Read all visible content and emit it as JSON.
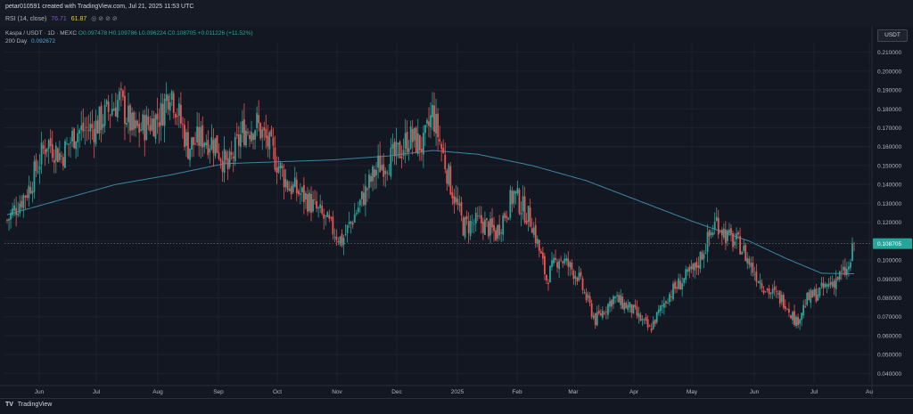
{
  "caption": "petar010591 created with TradingView.com, Jul 21, 2025 11:53 UTC",
  "rsi": {
    "label": "RSI (14, close)",
    "value1": "76.71",
    "value2": "61.87",
    "icons": "◎ ⊘ ⊘ ⊘"
  },
  "legend": {
    "symbol": "Kaspa / USDT · 1D · MEXC",
    "open": "O0.097478",
    "high": "H0.109786",
    "low": "L0.096224",
    "close": "C0.108705",
    "change": "+0.011226 (+11.52%)",
    "ma_name": "200 Day",
    "ma_value": "0.092672"
  },
  "currency": "USDT",
  "brand": {
    "logo": "TV",
    "name": "TradingView"
  },
  "colors": {
    "up": "#26a69a",
    "down": "#ef5350",
    "ma": "#3d86a5",
    "last_price_bg": "#26a69a"
  },
  "chart_data": {
    "type": "candlestick",
    "ylim": [
      0.035,
      0.215
    ],
    "y_ticks": [
      "0.210000",
      "0.200000",
      "0.190000",
      "0.180000",
      "0.170000",
      "0.160000",
      "0.150000",
      "0.140000",
      "0.130000",
      "0.120000",
      "0.110000",
      "0.100000",
      "0.090000",
      "0.080000",
      "0.070000",
      "0.060000",
      "0.050000",
      "0.040000"
    ],
    "x_ticks": [
      "Jun",
      "Jul",
      "Aug",
      "Sep",
      "Oct",
      "Nov",
      "Dec",
      "2025",
      "Feb",
      "Mar",
      "Apr",
      "May",
      "Jun",
      "Jul",
      "Au"
    ],
    "last_price": "0.108705",
    "last_price_value": 0.108705,
    "price_anchors": [
      [
        0,
        0.121
      ],
      [
        12,
        0.138
      ],
      [
        22,
        0.163
      ],
      [
        30,
        0.155
      ],
      [
        38,
        0.168
      ],
      [
        48,
        0.17
      ],
      [
        62,
        0.185
      ],
      [
        70,
        0.168
      ],
      [
        78,
        0.172
      ],
      [
        85,
        0.177
      ],
      [
        90,
        0.192
      ],
      [
        100,
        0.16
      ],
      [
        108,
        0.165
      ],
      [
        115,
        0.162
      ],
      [
        122,
        0.148
      ],
      [
        130,
        0.168
      ],
      [
        138,
        0.172
      ],
      [
        145,
        0.16
      ],
      [
        155,
        0.14
      ],
      [
        165,
        0.133
      ],
      [
        175,
        0.122
      ],
      [
        185,
        0.11
      ],
      [
        195,
        0.13
      ],
      [
        205,
        0.15
      ],
      [
        215,
        0.155
      ],
      [
        222,
        0.165
      ],
      [
        230,
        0.16
      ],
      [
        235,
        0.178
      ],
      [
        245,
        0.14
      ],
      [
        252,
        0.118
      ],
      [
        262,
        0.12
      ],
      [
        270,
        0.114
      ],
      [
        280,
        0.135
      ],
      [
        290,
        0.12
      ],
      [
        298,
        0.09
      ],
      [
        305,
        0.102
      ],
      [
        315,
        0.092
      ],
      [
        325,
        0.068
      ],
      [
        335,
        0.08
      ],
      [
        345,
        0.074
      ],
      [
        355,
        0.063
      ],
      [
        365,
        0.081
      ],
      [
        372,
        0.088
      ],
      [
        380,
        0.095
      ],
      [
        392,
        0.121
      ],
      [
        398,
        0.112
      ],
      [
        405,
        0.108
      ],
      [
        412,
        0.095
      ],
      [
        420,
        0.084
      ],
      [
        430,
        0.078
      ],
      [
        436,
        0.067
      ],
      [
        442,
        0.079
      ],
      [
        450,
        0.084
      ],
      [
        458,
        0.09
      ],
      [
        465,
        0.095
      ],
      [
        468,
        0.108705
      ]
    ],
    "ma200_anchors": [
      [
        0,
        0.124
      ],
      [
        30,
        0.132
      ],
      [
        60,
        0.14
      ],
      [
        90,
        0.145
      ],
      [
        120,
        0.151
      ],
      [
        150,
        0.152
      ],
      [
        180,
        0.153
      ],
      [
        210,
        0.155
      ],
      [
        235,
        0.158
      ],
      [
        260,
        0.156
      ],
      [
        290,
        0.15
      ],
      [
        320,
        0.142
      ],
      [
        350,
        0.131
      ],
      [
        380,
        0.12
      ],
      [
        410,
        0.11
      ],
      [
        430,
        0.101
      ],
      [
        450,
        0.093
      ],
      [
        468,
        0.0927
      ]
    ]
  }
}
